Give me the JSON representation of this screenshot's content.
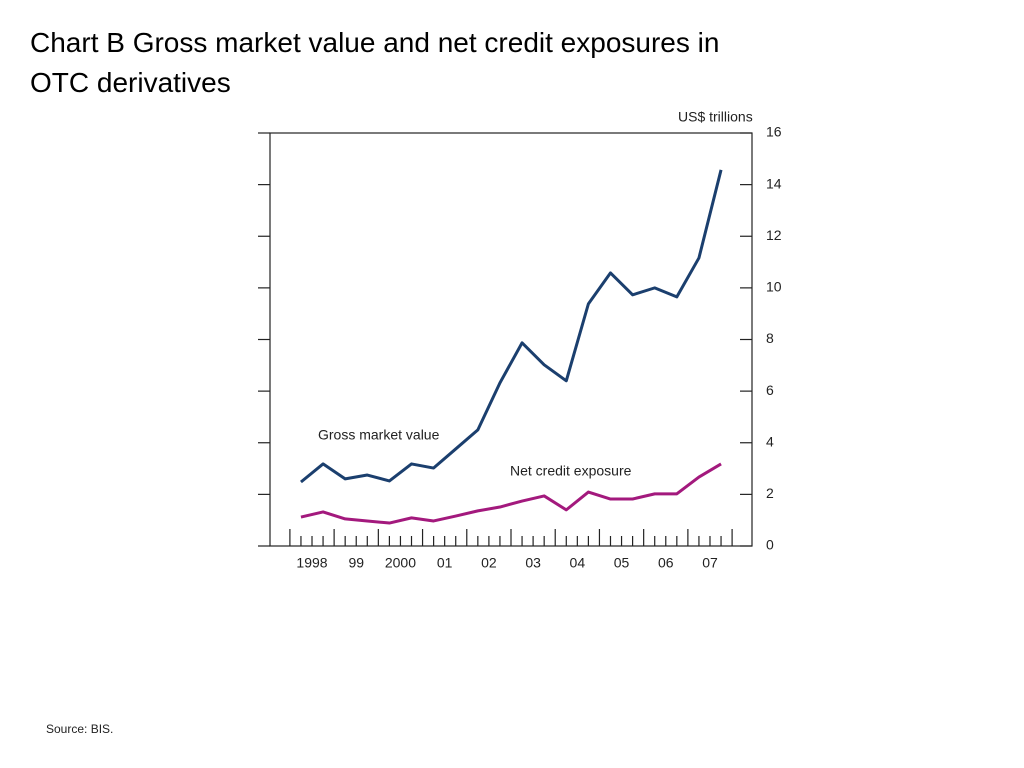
{
  "chart_data": {
    "type": "line",
    "title": [
      "Chart B  Gross market value and net credit exposures in",
      "OTC derivatives"
    ],
    "y_axis_label": "US$ trillions",
    "source": "Source:  BIS.",
    "x": [
      1998.25,
      1998.75,
      1999.25,
      1999.75,
      2000.25,
      2000.75,
      2001.25,
      2001.75,
      2002.25,
      2002.75,
      2003.25,
      2003.75,
      2004.25,
      2004.75,
      2005.25,
      2005.75,
      2006.25,
      2006.75,
      2007.25,
      2007.75
    ],
    "series": [
      {
        "name": "Gross market value",
        "color": "#1b3f6e",
        "values": [
          2.48,
          3.18,
          2.6,
          2.75,
          2.52,
          3.18,
          3.02,
          3.76,
          4.5,
          6.32,
          7.87,
          7.02,
          6.4,
          9.38,
          10.58,
          9.73,
          10.0,
          9.65,
          11.16,
          14.57
        ]
      },
      {
        "name": "Net credit exposure",
        "color": "#a3197d",
        "values": [
          1.12,
          1.32,
          1.05,
          0.97,
          0.89,
          1.09,
          0.97,
          1.16,
          1.36,
          1.51,
          1.74,
          1.94,
          1.4,
          2.09,
          1.82,
          1.82,
          2.02,
          2.02,
          2.67,
          3.18
        ]
      }
    ],
    "xlim": [
      1997.55,
      2008.45
    ],
    "xticks": [
      {
        "value": 1998.5,
        "label": "1998"
      },
      {
        "value": 1999.5,
        "label": "99"
      },
      {
        "value": 2000.5,
        "label": "2000"
      },
      {
        "value": 2001.5,
        "label": "01"
      },
      {
        "value": 2002.5,
        "label": "02"
      },
      {
        "value": 2003.5,
        "label": "03"
      },
      {
        "value": 2004.5,
        "label": "04"
      },
      {
        "value": 2005.5,
        "label": "05"
      },
      {
        "value": 2006.5,
        "label": "06"
      },
      {
        "value": 2007.5,
        "label": "07"
      }
    ],
    "ylim": [
      0,
      16
    ],
    "yticks": [
      0,
      2,
      4,
      6,
      8,
      10,
      12,
      14,
      16
    ],
    "grid": false
  }
}
